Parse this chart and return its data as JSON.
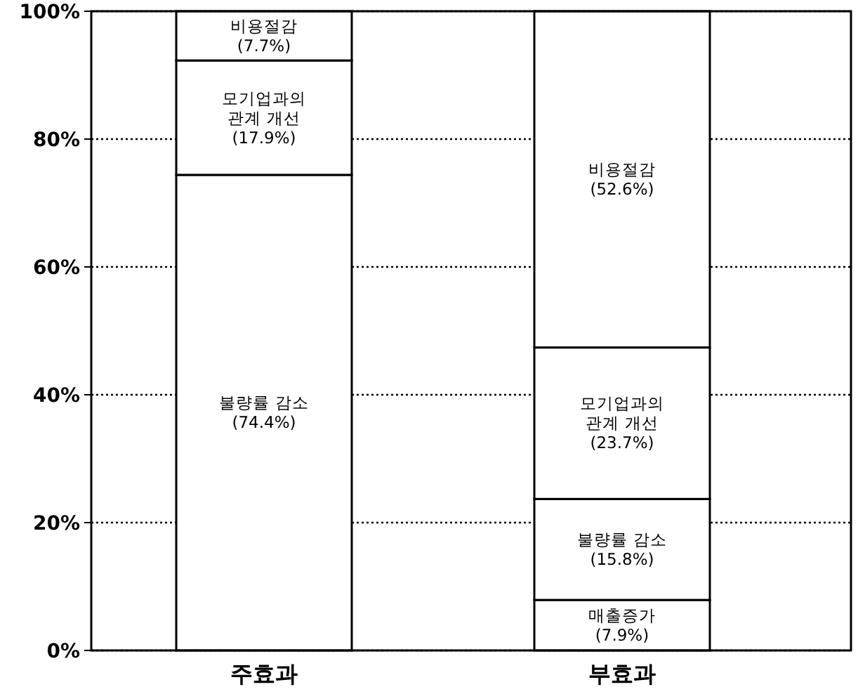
{
  "chart_data": {
    "type": "bar",
    "stacked": true,
    "categories": [
      "주효과",
      "부효과"
    ],
    "series": [
      {
        "name": "매출증가",
        "color": "#ffffff",
        "values": [
          null,
          7.9
        ],
        "value_labels": [
          null,
          "(7.9%)"
        ]
      },
      {
        "name": "불량률 감소",
        "color": "#ffffff",
        "values": [
          74.4,
          15.8
        ],
        "value_labels": [
          "(74.4%)",
          "(15.8%)"
        ]
      },
      {
        "name": "모기업과의 관계 개선",
        "color": "#ffffff",
        "values": [
          17.9,
          23.7
        ],
        "value_labels": [
          "(17.9%)",
          "(23.7%)"
        ]
      },
      {
        "name": "비용절감",
        "color": "#ffffff",
        "values": [
          7.7,
          52.6
        ],
        "value_labels": [
          "(7.7%)",
          "(52.6%)"
        ]
      }
    ],
    "ylim": [
      0,
      100
    ],
    "yticks": [
      {
        "value": 0,
        "label": "0%"
      },
      {
        "value": 20,
        "label": "20%"
      },
      {
        "value": 40,
        "label": "40%"
      },
      {
        "value": 60,
        "label": "60%"
      },
      {
        "value": 80,
        "label": "80%"
      },
      {
        "value": 100,
        "label": "100%"
      }
    ],
    "grid": "y",
    "line_style": "dotted"
  }
}
